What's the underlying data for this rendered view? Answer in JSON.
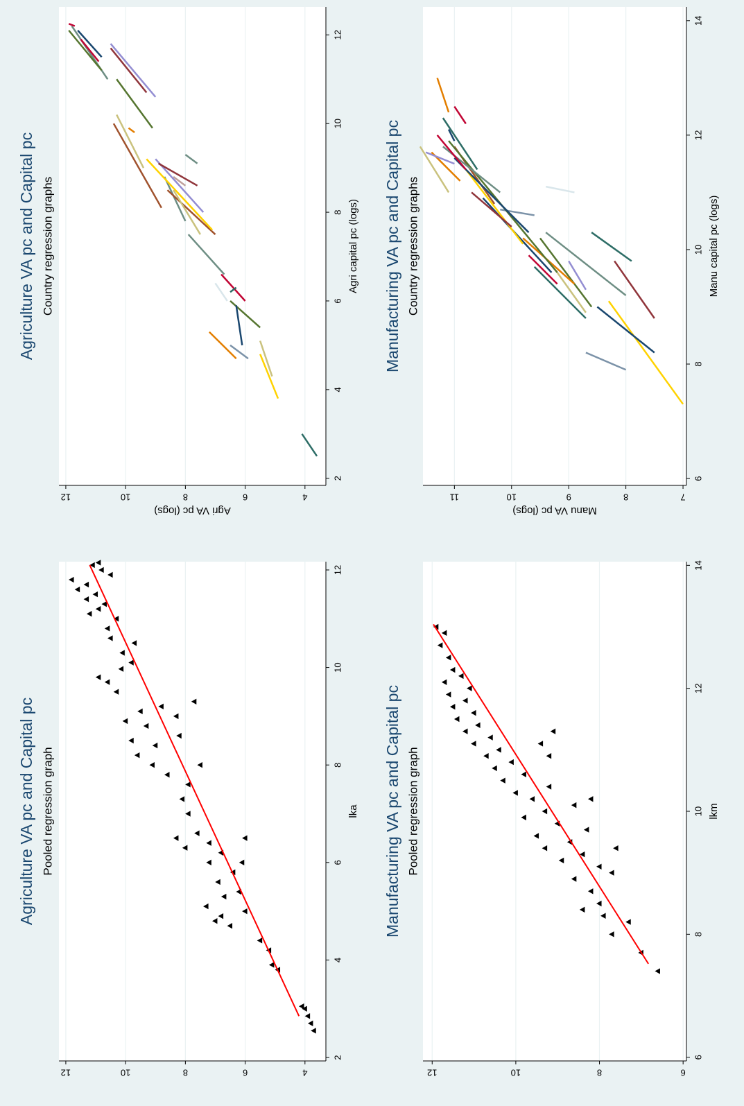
{
  "chart_data": [
    {
      "type": "scatter",
      "title": "Agriculture VA pc and Capital pc",
      "subtitle": "Pooled regression graph",
      "x_label": "lka",
      "xlim": [
        1.93,
        12.17
      ],
      "ylim": [
        3.3,
        12.23
      ],
      "xticks": [
        2,
        4,
        6,
        8,
        10,
        12
      ],
      "yticks": [
        4,
        6,
        8,
        10,
        12
      ],
      "grid": true,
      "series": [
        {
          "color": "#000000",
          "marker": "triangle",
          "x": [
            2.55,
            2.7,
            2.85,
            3.0,
            3.05,
            3.8,
            3.9,
            4.2,
            4.4,
            4.7,
            4.8,
            4.9,
            5.0,
            5.1,
            5.3,
            5.4,
            5.6,
            5.8,
            6.0,
            6.2,
            6.4,
            6.5,
            6.3,
            6.5,
            6.6,
            6.0,
            7.0,
            7.3,
            7.6,
            7.8,
            8.0,
            8.0,
            8.2,
            8.4,
            8.6,
            8.8,
            9.0,
            9.2,
            9.3,
            8.5,
            8.9,
            9.1,
            9.5,
            9.7,
            9.8,
            9.97,
            10.1,
            10.3,
            10.5,
            10.6,
            10.8,
            11.0,
            11.2,
            11.4,
            11.6,
            11.8,
            11.5,
            11.7,
            12.0,
            12.1,
            12.15,
            11.9,
            11.3,
            11.1
          ],
          "values": [
            3.7,
            3.8,
            3.9,
            4.0,
            4.1,
            4.9,
            5.1,
            5.2,
            5.5,
            6.5,
            7.0,
            6.8,
            6.0,
            7.3,
            6.7,
            6.2,
            6.9,
            6.4,
            6.1,
            6.8,
            7.2,
            6.0,
            8.0,
            8.3,
            7.6,
            7.2,
            7.9,
            8.1,
            7.9,
            8.6,
            9.1,
            7.5,
            9.6,
            9.0,
            8.2,
            9.3,
            8.3,
            8.8,
            7.7,
            9.8,
            10.0,
            9.5,
            10.3,
            10.6,
            10.9,
            10.14,
            9.8,
            10.1,
            9.7,
            10.5,
            10.6,
            10.3,
            10.9,
            11.3,
            11.6,
            11.8,
            11.0,
            11.3,
            10.8,
            11.1,
            10.9,
            10.5,
            10.7,
            11.2
          ]
        },
        {
          "color": "#ff0000",
          "x": [
            2.85,
            12.1
          ],
          "values": [
            4.2,
            11.2
          ]
        }
      ]
    },
    {
      "type": "line",
      "title": "Agriculture VA pc and Capital pc",
      "subtitle": "Country regression graphs",
      "x_label": "Agri capital pc (logs)",
      "y_label": "Agri VA pc (logs)",
      "xlim": [
        1.84,
        12.63
      ],
      "ylim": [
        3.3,
        12.23
      ],
      "xticks": [
        2,
        4,
        6,
        8,
        10,
        12
      ],
      "yticks": [
        4,
        6,
        8,
        10,
        12
      ],
      "grid": true,
      "series": [
        {
          "color": "#2d6d66",
          "x": [
            2.5,
            3.0
          ],
          "values": [
            3.6,
            4.1
          ]
        },
        {
          "color": "#ffd200",
          "x": [
            3.8,
            4.8
          ],
          "values": [
            4.9,
            5.5
          ]
        },
        {
          "color": "#cac27e",
          "x": [
            4.3,
            5.1
          ],
          "values": [
            5.1,
            5.5
          ]
        },
        {
          "color": "#7b92a8",
          "x": [
            4.7,
            5.0
          ],
          "values": [
            5.9,
            6.5
          ]
        },
        {
          "color": "#e37e00",
          "x": [
            4.7,
            5.3
          ],
          "values": [
            6.3,
            7.2
          ]
        },
        {
          "color": "#55752f",
          "x": [
            5.4,
            6.0
          ],
          "values": [
            5.5,
            6.5
          ]
        },
        {
          "color": "#1a476f",
          "x": [
            5.0,
            5.9
          ],
          "values": [
            6.1,
            6.3
          ]
        },
        {
          "color": "#c10534",
          "x": [
            6.0,
            6.6
          ],
          "values": [
            6.0,
            6.8
          ]
        },
        {
          "color": "#d9e6eb",
          "x": [
            6.0,
            6.4
          ],
          "values": [
            6.6,
            7.0
          ]
        },
        {
          "color": "#2d6d66",
          "x": [
            6.2,
            6.3
          ],
          "values": [
            6.5,
            6.3
          ]
        },
        {
          "color": "#6e8e84",
          "x": [
            6.6,
            7.5
          ],
          "values": [
            6.7,
            7.9
          ]
        },
        {
          "color": "#6e8e84",
          "x": [
            7.8,
            8.8
          ],
          "values": [
            8.0,
            8.7
          ]
        },
        {
          "color": "#a0522d",
          "x": [
            7.5,
            8.5
          ],
          "values": [
            7.0,
            8.6
          ]
        },
        {
          "color": "#ffd200",
          "x": [
            7.6,
            9.2
          ],
          "values": [
            7.1,
            9.3
          ]
        },
        {
          "color": "#cac27e",
          "x": [
            7.5,
            8.5
          ],
          "values": [
            7.5,
            8.4
          ]
        },
        {
          "color": "#938dd2",
          "x": [
            8.0,
            9.2
          ],
          "values": [
            7.4,
            9.0
          ]
        },
        {
          "color": "#bfa19c",
          "x": [
            8.6,
            8.8
          ],
          "values": [
            8.0,
            8.4
          ]
        },
        {
          "color": "#90353b",
          "x": [
            8.6,
            9.1
          ],
          "values": [
            7.6,
            8.9
          ]
        },
        {
          "color": "#6e8e84",
          "x": [
            9.1,
            9.3
          ],
          "values": [
            7.6,
            8.0
          ]
        },
        {
          "color": "#a0522d",
          "x": [
            8.1,
            10.0
          ],
          "values": [
            8.8,
            10.4
          ]
        },
        {
          "color": "#e37e00",
          "x": [
            9.8,
            9.9
          ],
          "values": [
            9.7,
            9.9
          ]
        },
        {
          "color": "#cac27e",
          "x": [
            9.0,
            10.2
          ],
          "values": [
            9.4,
            10.3
          ]
        },
        {
          "color": "#938dd2",
          "x": [
            10.6,
            11.8
          ],
          "values": [
            9.0,
            10.5
          ]
        },
        {
          "color": "#55752f",
          "x": [
            9.9,
            11.0
          ],
          "values": [
            9.1,
            10.3
          ]
        },
        {
          "color": "#90353b",
          "x": [
            10.7,
            11.7
          ],
          "values": [
            9.3,
            10.5
          ]
        },
        {
          "color": "#6e8e84",
          "x": [
            11.0,
            12.2
          ],
          "values": [
            10.6,
            11.8
          ]
        },
        {
          "color": "#55752f",
          "x": [
            11.2,
            12.1
          ],
          "values": [
            10.8,
            11.9
          ]
        },
        {
          "color": "#c10534",
          "x": [
            11.4,
            11.9
          ],
          "values": [
            10.9,
            11.5
          ]
        },
        {
          "color": "#1a476f",
          "x": [
            11.5,
            12.1
          ],
          "values": [
            10.8,
            11.6
          ]
        },
        {
          "color": "#c10534",
          "x": [
            12.2,
            12.25
          ],
          "values": [
            11.7,
            11.9
          ]
        }
      ]
    },
    {
      "type": "scatter",
      "title": "Manufacturing VA pc and Capital pc",
      "subtitle": "Pooled regression graph",
      "x_label": "lkm",
      "xlim": [
        5.94,
        14.06
      ],
      "ylim": [
        5.92,
        12.22
      ],
      "xticks": [
        6,
        8,
        10,
        12,
        14
      ],
      "yticks": [
        6,
        8,
        10,
        12
      ],
      "grid": true,
      "series": [
        {
          "color": "#000000",
          "marker": "triangle",
          "x": [
            7.4,
            7.7,
            8.2,
            8.0,
            8.3,
            8.5,
            8.4,
            8.7,
            8.9,
            9.0,
            9.1,
            9.2,
            9.3,
            9.4,
            9.5,
            9.6,
            9.7,
            9.8,
            9.9,
            10.0,
            10.1,
            10.2,
            10.3,
            10.4,
            10.5,
            10.6,
            10.7,
            10.8,
            10.9,
            10.9,
            11.1,
            11.3,
            11.0,
            11.1,
            11.2,
            11.3,
            11.4,
            11.5,
            11.6,
            11.7,
            11.8,
            11.9,
            12.0,
            12.1,
            12.2,
            12.3,
            12.5,
            12.7,
            12.9,
            13.0,
            9.4,
            10.2
          ],
          "values": [
            6.6,
            7.0,
            7.3,
            7.7,
            7.9,
            8.0,
            8.4,
            8.2,
            8.6,
            7.7,
            8.0,
            8.9,
            8.4,
            9.3,
            8.7,
            9.5,
            8.3,
            9.0,
            9.8,
            9.3,
            8.6,
            9.6,
            10.0,
            9.2,
            10.3,
            9.8,
            10.5,
            10.1,
            10.7,
            9.2,
            9.4,
            9.1,
            10.4,
            11.0,
            10.6,
            11.2,
            10.9,
            11.4,
            11.0,
            11.5,
            11.2,
            11.6,
            11.1,
            11.7,
            11.3,
            11.5,
            11.6,
            11.8,
            11.7,
            11.9,
            7.6,
            8.2
          ]
        },
        {
          "color": "#ff0000",
          "x": [
            7.52,
            13.04
          ],
          "values": [
            6.83,
            11.97
          ]
        }
      ]
    },
    {
      "type": "line",
      "title": "Manufacturing VA pc and Capital pc",
      "subtitle": "Country regression graphs",
      "x_label": "Manu capital pc (logs)",
      "y_label": "Manu VA pc (logs)",
      "xlim": [
        5.88,
        14.24
      ],
      "ylim": [
        6.94,
        11.55
      ],
      "xticks": [
        6,
        8,
        10,
        12,
        14
      ],
      "yticks": [
        7,
        8,
        9,
        10,
        11
      ],
      "grid": true,
      "series": [
        {
          "color": "#ffd200",
          "x": [
            7.3,
            9.1
          ],
          "values": [
            7.0,
            8.3
          ]
        },
        {
          "color": "#1a476f",
          "x": [
            8.2,
            9.0
          ],
          "values": [
            7.5,
            8.5
          ]
        },
        {
          "color": "#7b92a8",
          "x": [
            7.9,
            8.2
          ],
          "values": [
            8.0,
            8.7
          ]
        },
        {
          "color": "#90353b",
          "x": [
            8.8,
            9.8
          ],
          "values": [
            7.5,
            8.2
          ]
        },
        {
          "color": "#2d6d66",
          "x": [
            8.8,
            9.7
          ],
          "values": [
            8.7,
            9.6
          ]
        },
        {
          "color": "#55752f",
          "x": [
            9.0,
            10.2
          ],
          "values": [
            8.6,
            9.5
          ]
        },
        {
          "color": "#cac27e",
          "x": [
            8.9,
            9.6
          ],
          "values": [
            8.7,
            9.2
          ]
        },
        {
          "color": "#2d6d66",
          "x": [
            9.8,
            10.3
          ],
          "values": [
            7.9,
            8.6
          ]
        },
        {
          "color": "#6e8e84",
          "x": [
            9.2,
            10.3
          ],
          "values": [
            8.0,
            9.4
          ]
        },
        {
          "color": "#c10534",
          "x": [
            9.4,
            9.9
          ],
          "values": [
            9.2,
            9.7
          ]
        },
        {
          "color": "#e37e00",
          "x": [
            9.4,
            10.2
          ],
          "values": [
            8.9,
            9.8
          ]
        },
        {
          "color": "#938dd2",
          "x": [
            9.3,
            9.8
          ],
          "values": [
            8.7,
            9.0
          ]
        },
        {
          "color": "#1a476f",
          "x": [
            9.6,
            10.9
          ],
          "values": [
            9.3,
            10.5
          ]
        },
        {
          "color": "#ffd200",
          "x": [
            10.1,
            11.4
          ],
          "values": [
            9.8,
            10.8
          ]
        },
        {
          "color": "#90353b",
          "x": [
            10.4,
            11.0
          ],
          "values": [
            10.0,
            10.7
          ]
        },
        {
          "color": "#7b92a8",
          "x": [
            10.6,
            10.7
          ],
          "values": [
            9.6,
            10.2
          ]
        },
        {
          "color": "#d9e6eb",
          "x": [
            11.0,
            11.1
          ],
          "values": [
            8.9,
            9.4
          ]
        },
        {
          "color": "#a0522d",
          "x": [
            10.8,
            11.8
          ],
          "values": [
            10.3,
            11.0
          ]
        },
        {
          "color": "#55752f",
          "x": [
            9.6,
            11.9
          ],
          "values": [
            9.2,
            11.1
          ]
        },
        {
          "color": "#1a476f",
          "x": [
            10.3,
            11.6
          ],
          "values": [
            9.7,
            11.0
          ]
        },
        {
          "color": "#6e8e84",
          "x": [
            11.0,
            11.8
          ],
          "values": [
            10.2,
            11.2
          ]
        },
        {
          "color": "#2d6d66",
          "x": [
            11.4,
            12.3
          ],
          "values": [
            10.6,
            11.2
          ]
        },
        {
          "color": "#c10534",
          "x": [
            11.4,
            12.0
          ],
          "values": [
            10.8,
            11.3
          ]
        },
        {
          "color": "#e37e00",
          "x": [
            11.2,
            11.7
          ],
          "values": [
            10.9,
            11.4
          ]
        },
        {
          "color": "#938dd2",
          "x": [
            11.5,
            11.7
          ],
          "values": [
            11.0,
            11.5
          ]
        },
        {
          "color": "#cac27e",
          "x": [
            11.0,
            11.8
          ],
          "values": [
            11.1,
            11.6
          ]
        },
        {
          "color": "#1a476f",
          "x": [
            11.9,
            12.1
          ],
          "values": [
            11.0,
            11.1
          ]
        },
        {
          "color": "#c10534",
          "x": [
            12.2,
            12.5
          ],
          "values": [
            10.8,
            11.0
          ]
        },
        {
          "color": "#e37e00",
          "x": [
            12.4,
            13.0
          ],
          "values": [
            11.1,
            11.3
          ]
        }
      ]
    }
  ]
}
